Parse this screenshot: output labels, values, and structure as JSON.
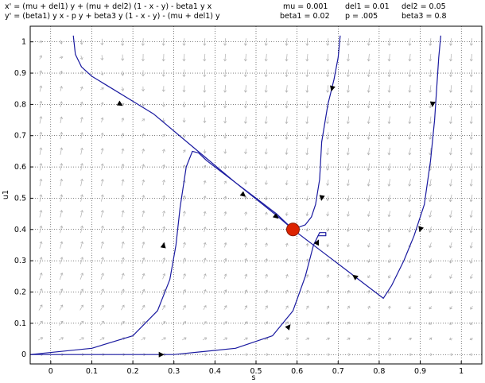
{
  "header": {
    "eq_x": "x' = (mu + del1) y + (mu + del2) (1 - x - y) - beta1 y x",
    "eq_y": "y' = (beta1) y x - p y + beta3 y (1 - x - y) - (mu + del1) y",
    "params": {
      "mu": "mu = 0.001",
      "del1": "del1 = 0.01",
      "del2": "del2 = 0.05",
      "beta1": "beta1 = 0.02",
      "p": "p = .005",
      "beta3": "beta3 = 0.8"
    }
  },
  "chart_data": {
    "type": "line",
    "xlabel": "s",
    "ylabel": "u1",
    "xlim": [
      -0.05,
      1.05
    ],
    "ylim": [
      -0.03,
      1.05
    ],
    "xticks": [
      0,
      0.1,
      0.2,
      0.3,
      0.4,
      0.5,
      0.6,
      0.7,
      0.8,
      0.9,
      1
    ],
    "yticks": [
      0,
      0.1,
      0.2,
      0.3,
      0.4,
      0.5,
      0.6,
      0.7,
      0.8,
      0.9,
      1
    ],
    "grid": "dotted",
    "colors": {
      "trajectory": "#1a1aa0",
      "vector_field": "#b0b0b0",
      "equilibrium": "#dd2200",
      "equilibrium_edge": "#8a1a00"
    },
    "equilibrium": {
      "x": 0.59,
      "y": 0.4
    },
    "trajectories": [
      {
        "x": [
          0.055,
          0.06,
          0.075,
          0.1,
          0.15,
          0.25,
          0.35,
          0.45,
          0.55,
          0.59
        ],
        "y": [
          1.02,
          0.96,
          0.92,
          0.89,
          0.85,
          0.77,
          0.66,
          0.55,
          0.445,
          0.4
        ],
        "arrows": [
          [
            0.17,
            0.8
          ],
          [
            0.47,
            0.51
          ],
          [
            0.55,
            0.44
          ]
        ]
      },
      {
        "x": [
          -0.05,
          0.1,
          0.2,
          0.26,
          0.29,
          0.305,
          0.315,
          0.33,
          0.345,
          0.36,
          0.38,
          0.4,
          0.45,
          0.5,
          0.55,
          0.59
        ],
        "y": [
          0.0,
          0.02,
          0.06,
          0.14,
          0.24,
          0.35,
          0.47,
          0.6,
          0.65,
          0.645,
          0.62,
          0.6,
          0.55,
          0.5,
          0.45,
          0.4
        ],
        "arrows": [
          [
            0.275,
            0.35
          ]
        ]
      },
      {
        "x": [
          -0.05,
          0.1,
          0.3,
          0.45,
          0.54,
          0.59,
          0.62,
          0.64,
          0.655,
          0.67,
          0.67,
          0.66,
          0.65
        ],
        "y": [
          0.0,
          0.0,
          0.0,
          0.02,
          0.06,
          0.14,
          0.25,
          0.35,
          0.39,
          0.39,
          0.38,
          0.38,
          0.38
        ],
        "arrows": [
          [
            0.27,
            0.0
          ],
          [
            0.58,
            0.09
          ],
          [
            0.65,
            0.36
          ]
        ]
      },
      {
        "x": [
          0.705,
          0.7,
          0.69,
          0.675,
          0.66,
          0.655,
          0.645,
          0.635,
          0.62,
          0.6,
          0.59
        ],
        "y": [
          1.02,
          0.95,
          0.88,
          0.8,
          0.68,
          0.56,
          0.48,
          0.44,
          0.415,
          0.405,
          0.4
        ],
        "arrows": [
          [
            0.685,
            0.85
          ],
          [
            0.66,
            0.5
          ]
        ]
      },
      {
        "x": [
          0.95,
          0.945,
          0.94,
          0.935,
          0.925,
          0.91,
          0.885,
          0.86,
          0.83,
          0.81,
          0.77,
          0.72,
          0.66,
          0.61,
          0.59
        ],
        "y": [
          1.02,
          0.95,
          0.85,
          0.75,
          0.62,
          0.48,
          0.38,
          0.3,
          0.22,
          0.18,
          0.22,
          0.27,
          0.33,
          0.38,
          0.4
        ],
        "arrows": [
          [
            0.93,
            0.8
          ],
          [
            0.9,
            0.4
          ],
          [
            0.74,
            0.25
          ]
        ]
      }
    ]
  }
}
